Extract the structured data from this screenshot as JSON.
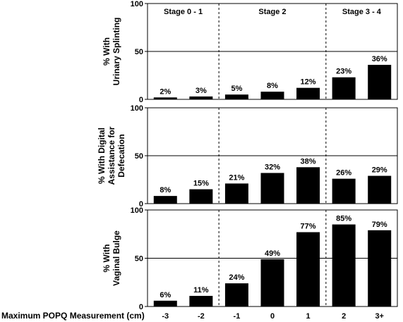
{
  "chart_data": {
    "type": "bar",
    "xlabel": "Maximum POPQ Measurement (cm)",
    "categories": [
      "-3",
      "-2",
      "-1",
      "0",
      "1",
      "2",
      "3+"
    ],
    "stages": [
      {
        "label": "Stage 0 - 1",
        "categories": [
          "-3",
          "-2"
        ]
      },
      {
        "label": "Stage 2",
        "categories": [
          "-1",
          "0",
          "1"
        ]
      },
      {
        "label": "Stage 3 - 4",
        "categories": [
          "2",
          "3+"
        ]
      }
    ],
    "ylim": [
      0,
      100
    ],
    "yticks": [
      "0",
      "50",
      "100"
    ],
    "bar_color": "#000000",
    "panels": [
      {
        "ylabel_lines": [
          "% With",
          "Urinary Splinting"
        ],
        "values": [
          2,
          3,
          5,
          8,
          12,
          23,
          36
        ],
        "value_labels": [
          "2%",
          "3%",
          "5%",
          "8%",
          "12%",
          "23%",
          "36%"
        ]
      },
      {
        "ylabel_lines": [
          "% With Digital",
          "Assistance for",
          "Defecation"
        ],
        "values": [
          8,
          15,
          21,
          32,
          38,
          26,
          29
        ],
        "value_labels": [
          "8%",
          "15%",
          "21%",
          "32%",
          "38%",
          "26%",
          "29%"
        ]
      },
      {
        "ylabel_lines": [
          "% With",
          "Vaginal Bulge"
        ],
        "values": [
          6,
          11,
          24,
          49,
          77,
          85,
          79
        ],
        "value_labels": [
          "6%",
          "11%",
          "24%",
          "49%",
          "77%",
          "85%",
          "79%"
        ]
      }
    ]
  }
}
